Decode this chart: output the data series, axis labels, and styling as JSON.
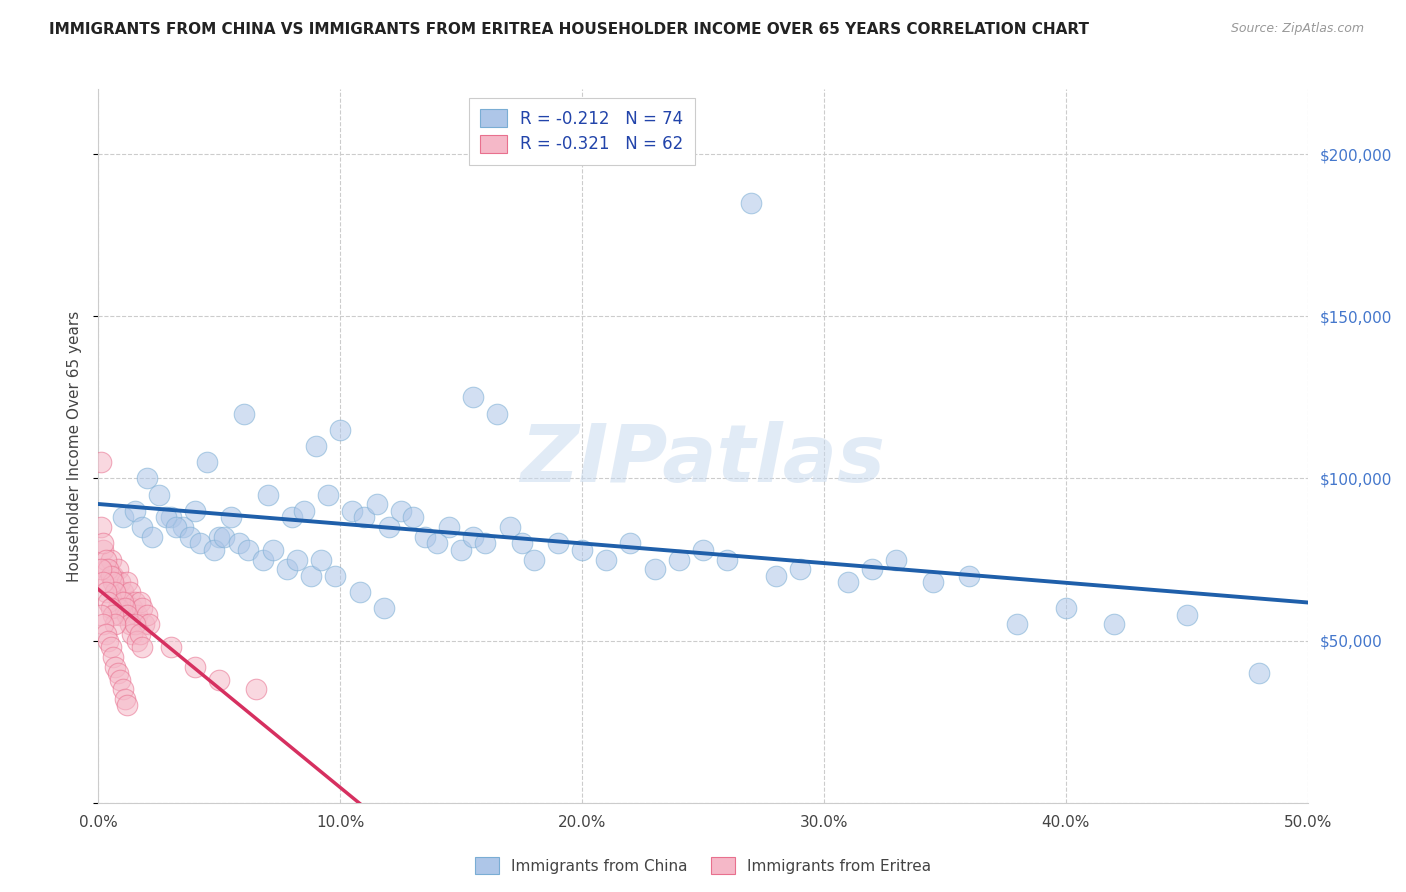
{
  "title": "IMMIGRANTS FROM CHINA VS IMMIGRANTS FROM ERITREA HOUSEHOLDER INCOME OVER 65 YEARS CORRELATION CHART",
  "source": "Source: ZipAtlas.com",
  "ylabel": "Householder Income Over 65 years",
  "xlim": [
    0.0,
    0.5
  ],
  "ylim": [
    0,
    220000
  ],
  "xtick_labels": [
    "0.0%",
    "10.0%",
    "20.0%",
    "30.0%",
    "40.0%",
    "50.0%"
  ],
  "xtick_vals": [
    0.0,
    0.1,
    0.2,
    0.3,
    0.4,
    0.5
  ],
  "ytick_vals": [
    0,
    50000,
    100000,
    150000,
    200000
  ],
  "ytick_labels_right": [
    "$50,000",
    "$100,000",
    "$150,000",
    "$200,000"
  ],
  "ytick_vals_right": [
    50000,
    100000,
    150000,
    200000
  ],
  "china_color": "#aec6e8",
  "china_edge_color": "#7aadd4",
  "eritrea_color": "#f5b8c8",
  "eritrea_edge_color": "#e8708e",
  "china_line_color": "#1f5faa",
  "eritrea_line_color": "#d63060",
  "eritrea_dashed_color": "#ddbbcc",
  "R_china": -0.212,
  "N_china": 74,
  "R_eritrea": -0.321,
  "N_eritrea": 62,
  "watermark": "ZIPatlas",
  "china_x": [
    0.27,
    0.155,
    0.165,
    0.045,
    0.06,
    0.09,
    0.095,
    0.1,
    0.105,
    0.11,
    0.115,
    0.12,
    0.125,
    0.13,
    0.135,
    0.02,
    0.025,
    0.03,
    0.035,
    0.04,
    0.05,
    0.055,
    0.07,
    0.08,
    0.085,
    0.14,
    0.145,
    0.15,
    0.155,
    0.16,
    0.17,
    0.175,
    0.18,
    0.19,
    0.2,
    0.21,
    0.22,
    0.23,
    0.24,
    0.25,
    0.26,
    0.28,
    0.29,
    0.31,
    0.32,
    0.33,
    0.345,
    0.36,
    0.38,
    0.4,
    0.42,
    0.45,
    0.48,
    0.01,
    0.015,
    0.018,
    0.022,
    0.028,
    0.032,
    0.038,
    0.042,
    0.048,
    0.052,
    0.058,
    0.062,
    0.068,
    0.072,
    0.078,
    0.082,
    0.088,
    0.092,
    0.098,
    0.108,
    0.118
  ],
  "china_y": [
    185000,
    125000,
    120000,
    105000,
    120000,
    110000,
    95000,
    115000,
    90000,
    88000,
    92000,
    85000,
    90000,
    88000,
    82000,
    100000,
    95000,
    88000,
    85000,
    90000,
    82000,
    88000,
    95000,
    88000,
    90000,
    80000,
    85000,
    78000,
    82000,
    80000,
    85000,
    80000,
    75000,
    80000,
    78000,
    75000,
    80000,
    72000,
    75000,
    78000,
    75000,
    70000,
    72000,
    68000,
    72000,
    75000,
    68000,
    70000,
    55000,
    60000,
    55000,
    58000,
    40000,
    88000,
    90000,
    85000,
    82000,
    88000,
    85000,
    82000,
    80000,
    78000,
    82000,
    80000,
    78000,
    75000,
    78000,
    72000,
    75000,
    70000,
    75000,
    70000,
    65000,
    60000
  ],
  "eritrea_x": [
    0.002,
    0.003,
    0.004,
    0.005,
    0.006,
    0.007,
    0.008,
    0.009,
    0.01,
    0.011,
    0.012,
    0.013,
    0.014,
    0.015,
    0.016,
    0.017,
    0.018,
    0.019,
    0.02,
    0.021,
    0.001,
    0.001,
    0.002,
    0.003,
    0.004,
    0.005,
    0.006,
    0.007,
    0.008,
    0.009,
    0.01,
    0.011,
    0.012,
    0.013,
    0.014,
    0.015,
    0.016,
    0.017,
    0.018,
    0.001,
    0.002,
    0.003,
    0.004,
    0.005,
    0.006,
    0.007,
    0.001,
    0.002,
    0.003,
    0.004,
    0.005,
    0.006,
    0.007,
    0.008,
    0.009,
    0.01,
    0.011,
    0.012,
    0.03,
    0.04,
    0.05,
    0.065
  ],
  "eritrea_y": [
    78000,
    72000,
    68000,
    75000,
    70000,
    65000,
    72000,
    68000,
    65000,
    62000,
    68000,
    65000,
    60000,
    62000,
    58000,
    62000,
    60000,
    55000,
    58000,
    55000,
    105000,
    85000,
    80000,
    75000,
    72000,
    70000,
    68000,
    65000,
    60000,
    58000,
    62000,
    60000,
    58000,
    55000,
    52000,
    55000,
    50000,
    52000,
    48000,
    72000,
    68000,
    65000,
    62000,
    60000,
    58000,
    55000,
    58000,
    55000,
    52000,
    50000,
    48000,
    45000,
    42000,
    40000,
    38000,
    35000,
    32000,
    30000,
    48000,
    42000,
    38000,
    35000
  ]
}
